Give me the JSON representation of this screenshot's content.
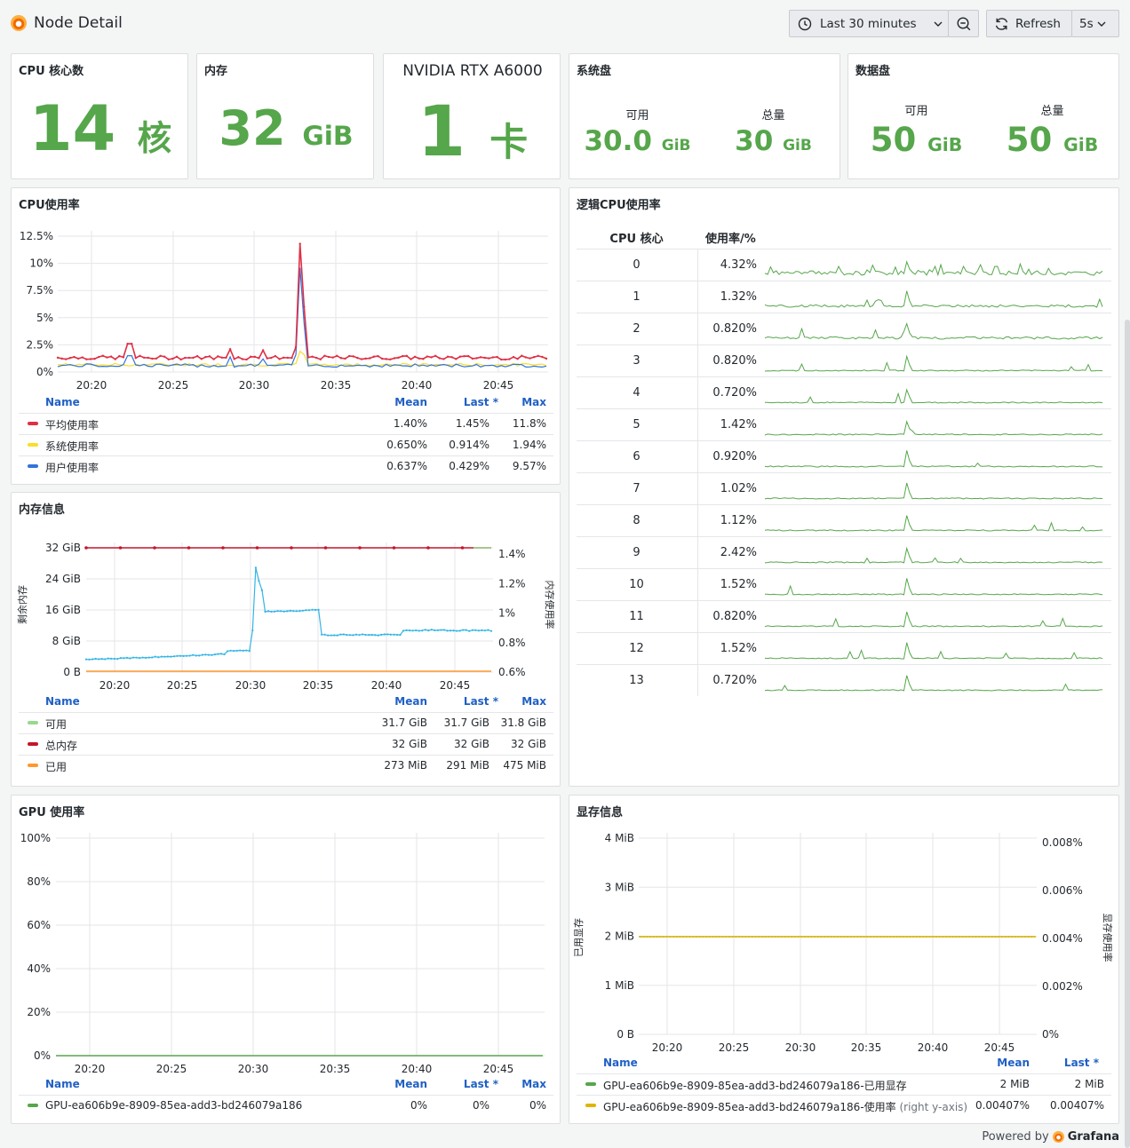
{
  "header": {
    "title": "Node Detail",
    "time_range": "Last 30 minutes",
    "refresh_label": "Refresh",
    "refresh_interval": "5s"
  },
  "stats": {
    "cpu": {
      "title": "CPU 核心数",
      "value": "14",
      "unit": "核"
    },
    "mem": {
      "title": "内存",
      "value": "32",
      "unit": "GiB"
    },
    "gpu": {
      "title": "NVIDIA RTX A6000",
      "value": "1",
      "unit": "卡"
    },
    "sysdisk": {
      "title": "系统盘",
      "avail_label": "可用",
      "avail_value": "30.0",
      "avail_unit": "GiB",
      "total_label": "总量",
      "total_value": "30",
      "total_unit": "GiB"
    },
    "datadisk": {
      "title": "数据盘",
      "avail_label": "可用",
      "avail_value": "50",
      "avail_unit": "GiB",
      "total_label": "总量",
      "total_value": "50",
      "total_unit": "GiB"
    }
  },
  "x_ticks": [
    "20:20",
    "20:25",
    "20:30",
    "20:35",
    "20:40",
    "20:45"
  ],
  "legend_headers": {
    "name": "Name",
    "mean": "Mean",
    "last": "Last *",
    "max": "Max"
  },
  "cpu_usage": {
    "title": "CPU使用率",
    "y_ticks": [
      "12.5%",
      "10%",
      "7.5%",
      "5%",
      "2.5%",
      "0%"
    ],
    "rows": [
      {
        "name": "平均使用率",
        "mean": "1.40%",
        "last": "1.45%",
        "max": "11.8%",
        "color": "#e02f44"
      },
      {
        "name": "系统使用率",
        "mean": "0.650%",
        "last": "0.914%",
        "max": "1.94%",
        "color": "#fade2a"
      },
      {
        "name": "用户使用率",
        "mean": "0.637%",
        "last": "0.429%",
        "max": "9.57%",
        "color": "#3274d9"
      }
    ]
  },
  "logical_cpu": {
    "title": "逻辑CPU使用率",
    "col_core": "CPU 核心",
    "col_usage": "使用率/%",
    "rows": [
      {
        "core": "0",
        "usage": "4.32%"
      },
      {
        "core": "1",
        "usage": "1.32%"
      },
      {
        "core": "2",
        "usage": "0.820%"
      },
      {
        "core": "3",
        "usage": "0.820%"
      },
      {
        "core": "4",
        "usage": "0.720%"
      },
      {
        "core": "5",
        "usage": "1.42%"
      },
      {
        "core": "6",
        "usage": "0.920%"
      },
      {
        "core": "7",
        "usage": "1.02%"
      },
      {
        "core": "8",
        "usage": "1.12%"
      },
      {
        "core": "9",
        "usage": "2.42%"
      },
      {
        "core": "10",
        "usage": "1.52%"
      },
      {
        "core": "11",
        "usage": "0.820%"
      },
      {
        "core": "12",
        "usage": "1.52%"
      },
      {
        "core": "13",
        "usage": "0.720%"
      }
    ]
  },
  "memory": {
    "title": "内存信息",
    "y_left_ticks": [
      "32 GiB",
      "24 GiB",
      "16 GiB",
      "8 GiB",
      "0 B"
    ],
    "y_right_ticks": [
      "1.4%",
      "1.2%",
      "1%",
      "0.8%",
      "0.6%"
    ],
    "y_left_label": "剩余内存",
    "y_right_label": "内存使用率",
    "rows": [
      {
        "name": "可用",
        "mean": "31.7 GiB",
        "last": "31.7 GiB",
        "max": "31.8 GiB",
        "color": "#96d98d"
      },
      {
        "name": "总内存",
        "mean": "32 GiB",
        "last": "32 GiB",
        "max": "32 GiB",
        "color": "#c4162a"
      },
      {
        "name": "已用",
        "mean": "273 MiB",
        "last": "291 MiB",
        "max": "475 MiB",
        "color": "#ff9830"
      }
    ]
  },
  "gpu_usage": {
    "title": "GPU 使用率",
    "y_ticks": [
      "100%",
      "80%",
      "60%",
      "40%",
      "20%",
      "0%"
    ],
    "rows": [
      {
        "name": "GPU-ea606b9e-8909-85ea-add3-bd246079a186",
        "mean": "0%",
        "last": "0%",
        "max": "0%",
        "color": "#56a64b"
      }
    ]
  },
  "vram": {
    "title": "显存信息",
    "y_left_ticks": [
      "4 MiB",
      "3 MiB",
      "2 MiB",
      "1 MiB",
      "0 B"
    ],
    "y_right_ticks": [
      "0.008%",
      "0.006%",
      "0.004%",
      "0.002%",
      "0%"
    ],
    "y_left_label": "已用显存",
    "y_right_label": "显存使用率",
    "rows": [
      {
        "name": "GPU-ea606b9e-8909-85ea-add3-bd246079a186-已用显存",
        "suffix": "",
        "mean": "2 MiB",
        "last": "2 MiB",
        "color": "#56a64b"
      },
      {
        "name": "GPU-ea606b9e-8909-85ea-add3-bd246079a186-使用率",
        "suffix": "(right y-axis)",
        "mean": "0.00407%",
        "last": "0.00407%",
        "color": "#e0b400"
      }
    ]
  },
  "footer": {
    "powered_by": "Powered by",
    "brand": "Grafana"
  }
}
